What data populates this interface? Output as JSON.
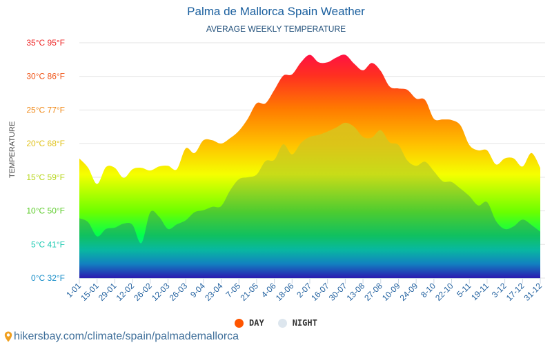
{
  "header": {
    "title": "Palma de Mallorca Spain Weather",
    "subtitle": "AVERAGE WEEKLY TEMPERATURE"
  },
  "legend": {
    "day_label": "DAY",
    "night_label": "NIGHT",
    "day_color": "#ff5500",
    "night_color": "#dde6ee"
  },
  "source": {
    "icon": "map-pin-icon",
    "text": "hikersbay.com/climate/spain/palmademallorca"
  },
  "chart_data": {
    "type": "area",
    "title": "Palma de Mallorca Spain Weather",
    "subtitle": "AVERAGE WEEKLY TEMPERATURE",
    "xlabel": "",
    "ylabel": "TEMPERATURE",
    "ylim": [
      0,
      35
    ],
    "grid": true,
    "legend_position": "bottom",
    "y_ticks": [
      {
        "value": 0,
        "label": "0°C 32°F",
        "color": "#1a8fc9"
      },
      {
        "value": 5,
        "label": "5°C 41°F",
        "color": "#19c9b0"
      },
      {
        "value": 10,
        "label": "10°C 50°F",
        "color": "#5ccc2a"
      },
      {
        "value": 15,
        "label": "15°C 59°F",
        "color": "#b7d61a"
      },
      {
        "value": 20,
        "label": "20°C 68°F",
        "color": "#e0c21a"
      },
      {
        "value": 25,
        "label": "25°C 77°F",
        "color": "#f08a1a"
      },
      {
        "value": 30,
        "label": "30°C 86°F",
        "color": "#f0561a"
      },
      {
        "value": 35,
        "label": "35°C 95°F",
        "color": "#ee2a2a"
      }
    ],
    "x_tick_labels": [
      "1-01",
      "15-01",
      "29-01",
      "12-02",
      "26-02",
      "12-03",
      "26-03",
      "9-04",
      "23-04",
      "7-05",
      "21-05",
      "4-06",
      "18-06",
      "2-07",
      "16-07",
      "30-07",
      "13-08",
      "27-08",
      "10-09",
      "24-09",
      "8-10",
      "22-10",
      "5-11",
      "19-11",
      "3-12",
      "17-12",
      "31-12"
    ],
    "series": [
      {
        "name": "DAY",
        "values": [
          17.8,
          16.4,
          14.0,
          16.5,
          16.4,
          14.9,
          16.2,
          16.4,
          16.0,
          16.6,
          16.7,
          16.2,
          19.3,
          18.6,
          20.5,
          20.5,
          20.0,
          20.8,
          21.9,
          23.7,
          26.0,
          26.0,
          28.0,
          30.1,
          30.3,
          32.1,
          33.2,
          32.1,
          32.1,
          32.8,
          33.2,
          31.9,
          30.9,
          32.0,
          30.8,
          28.5,
          28.2,
          28.0,
          26.7,
          26.5,
          23.7,
          23.6,
          23.5,
          22.7,
          19.8,
          19.0,
          19.0,
          16.9,
          17.8,
          17.8,
          16.6,
          18.6,
          16.4
        ]
      },
      {
        "name": "NIGHT",
        "values": [
          8.9,
          8.3,
          6.2,
          7.3,
          7.5,
          8.1,
          7.9,
          5.2,
          9.8,
          9.1,
          7.3,
          8.0,
          8.6,
          9.8,
          10.1,
          10.6,
          10.7,
          13.0,
          14.7,
          15.0,
          15.4,
          17.4,
          17.6,
          19.9,
          18.4,
          20.1,
          21.0,
          21.3,
          21.8,
          22.4,
          23.1,
          22.5,
          21.0,
          20.9,
          22.0,
          20.2,
          19.8,
          17.5,
          16.7,
          17.3,
          15.9,
          14.4,
          14.3,
          13.3,
          12.2,
          10.8,
          11.3,
          8.5,
          7.3,
          7.7,
          8.7,
          7.9,
          6.9
        ]
      }
    ]
  }
}
